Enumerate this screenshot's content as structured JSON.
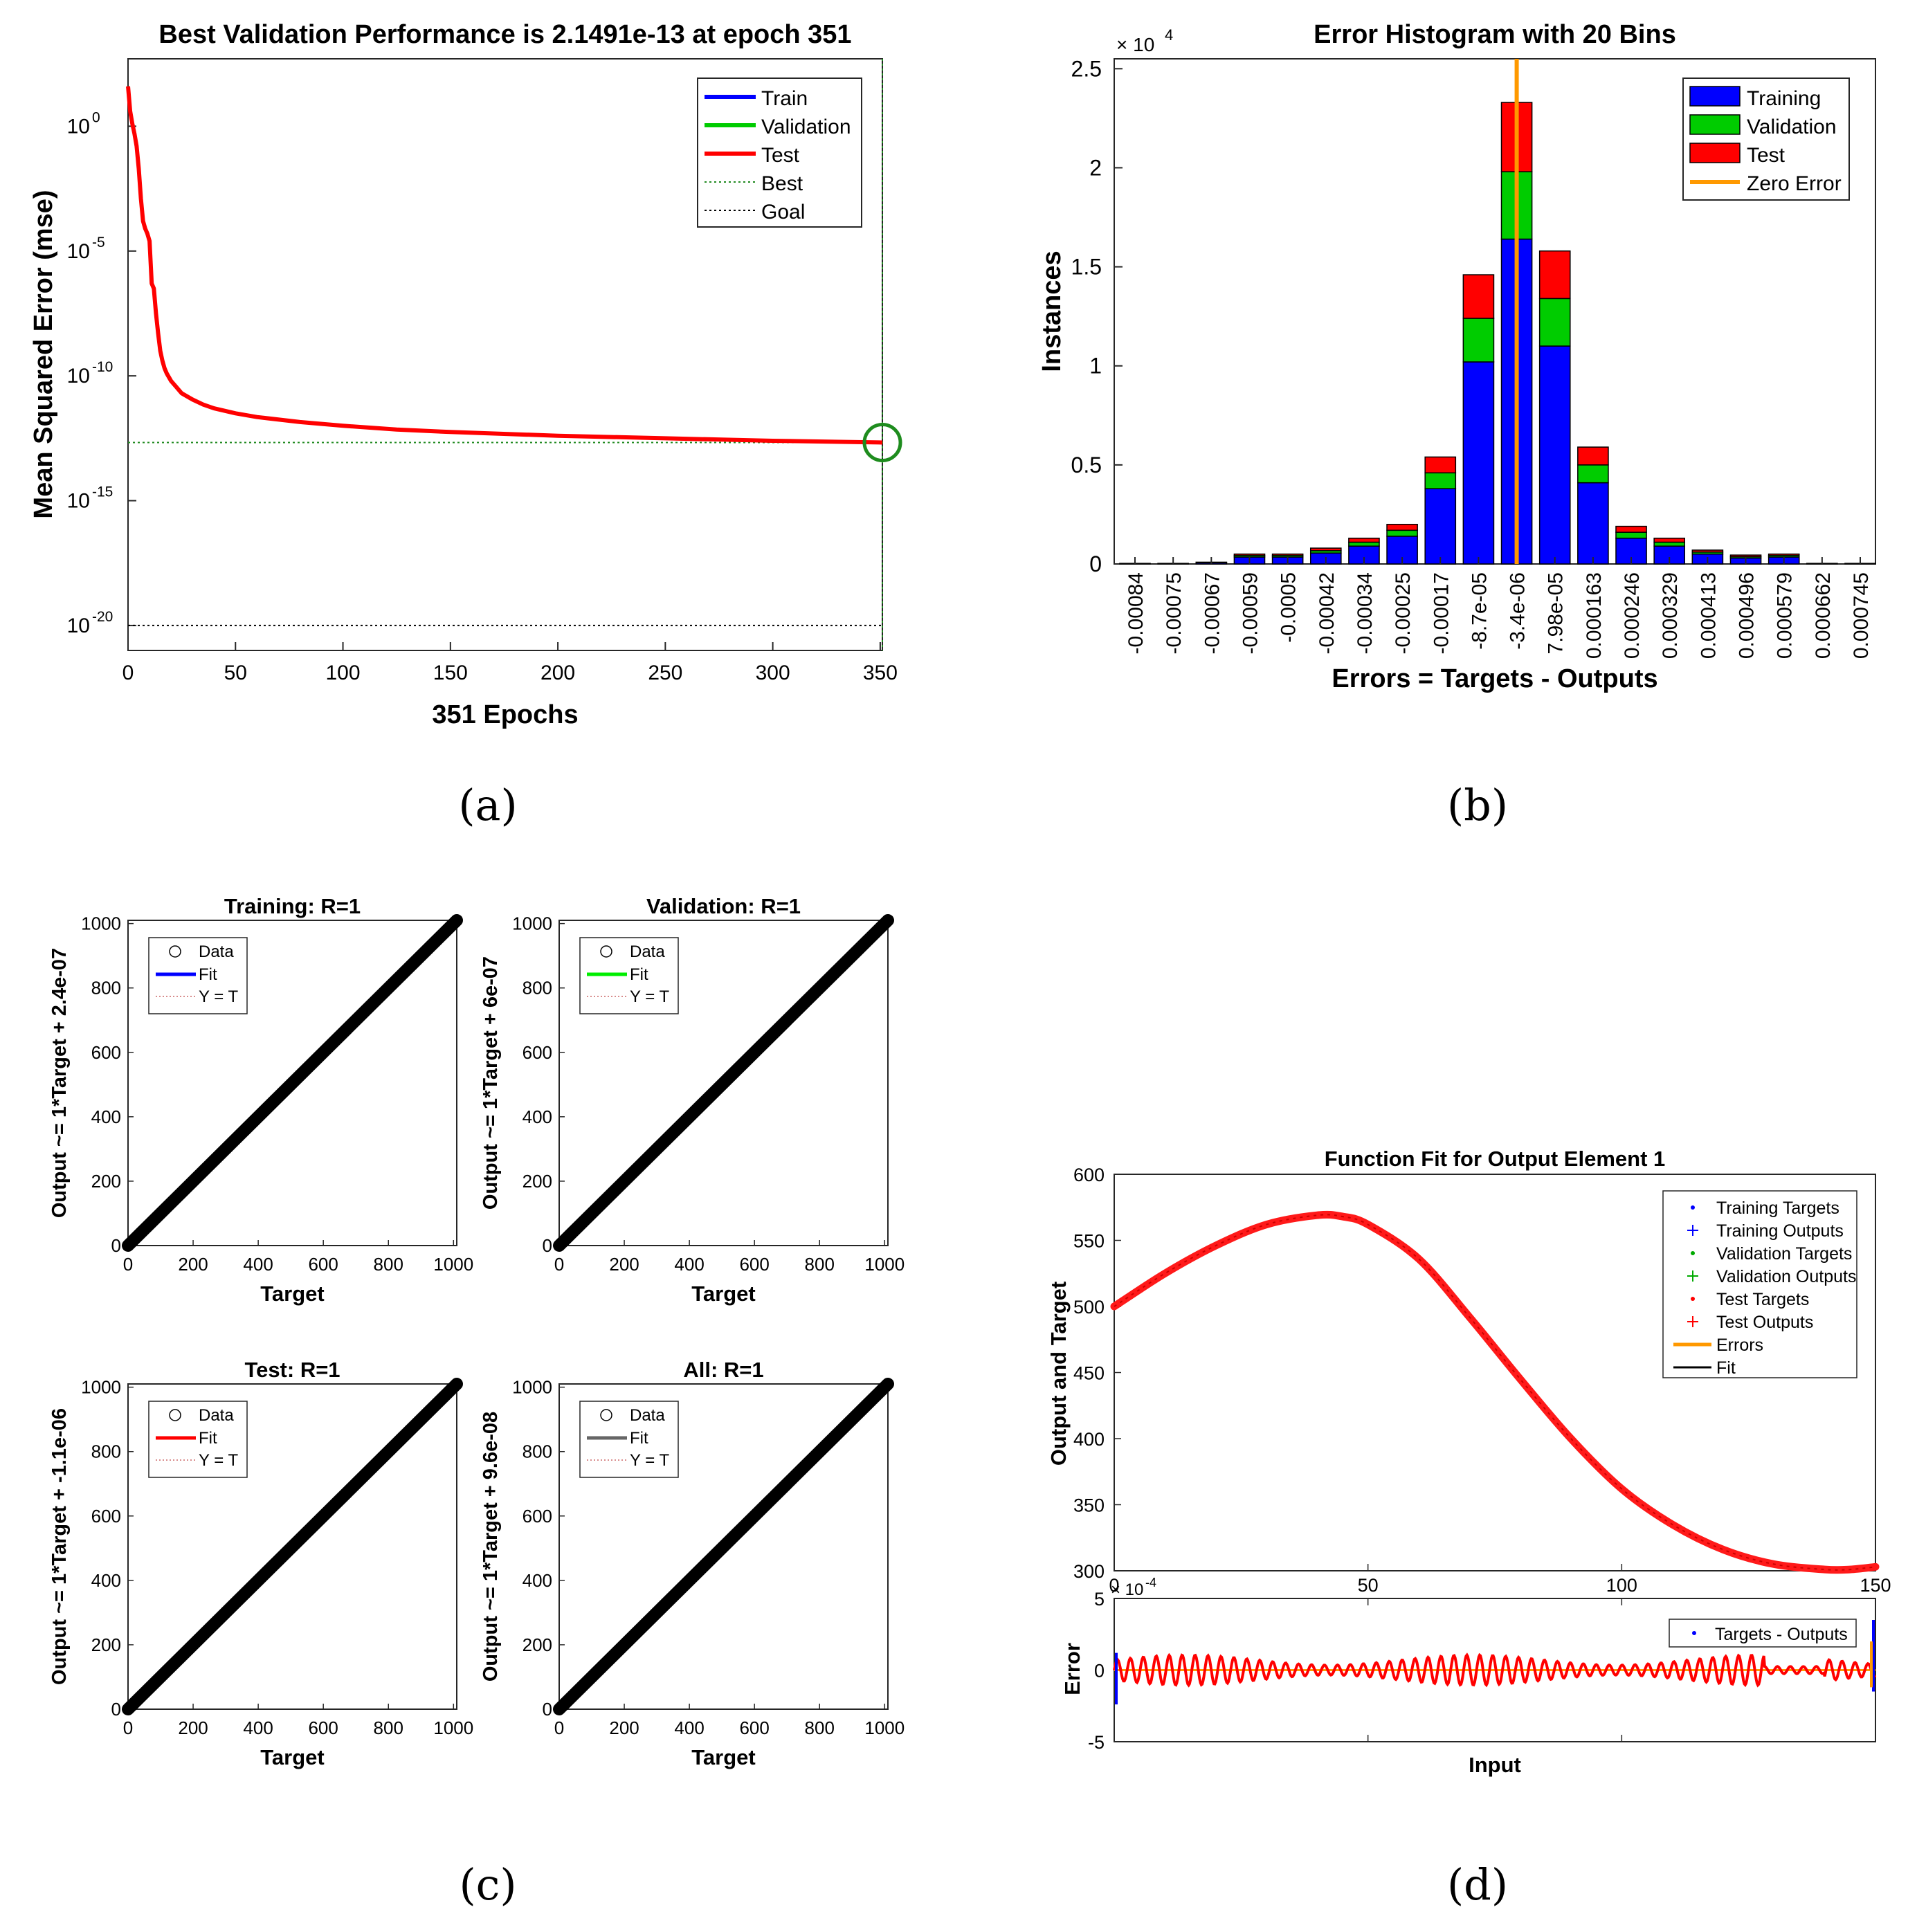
{
  "captions": [
    "(a)",
    "(b)",
    "(c)",
    "(d)"
  ],
  "colors": {
    "train": "#0000ff",
    "validation": "#00cc00",
    "test": "#ff0000",
    "zero_error": "#ff9900",
    "best": "#228b22",
    "gray_fit": "#666666"
  },
  "chart_data": [
    {
      "id": "a",
      "type": "line",
      "title": "Best Validation Performance is 2.1491e-13 at epoch 351",
      "xlabel": "351 Epochs",
      "ylabel": "Mean Squared Error  (mse)",
      "xlim": [
        0,
        351
      ],
      "ylim_log10": [
        -21,
        2.7
      ],
      "xticks": [
        0,
        50,
        100,
        150,
        200,
        250,
        300,
        350
      ],
      "yticks": [
        {
          "exp": 0,
          "base": "10",
          "sup": "0"
        },
        {
          "exp": -5,
          "base": "10",
          "sup": "-5"
        },
        {
          "exp": -10,
          "base": "10",
          "sup": "-10"
        },
        {
          "exp": -15,
          "base": "10",
          "sup": "-15"
        },
        {
          "exp": -20,
          "base": "10",
          "sup": "-20"
        }
      ],
      "best_epoch": 351,
      "best_value_log10": -12.67,
      "goal_log10": -20,
      "test_curve": {
        "epochs": [
          0,
          1,
          2,
          3,
          4,
          5,
          6,
          7,
          8,
          9,
          10,
          11,
          12,
          13,
          14,
          15,
          16,
          17,
          18,
          20,
          22,
          25,
          30,
          35,
          40,
          50,
          60,
          80,
          100,
          125,
          150,
          200,
          250,
          300,
          351
        ],
        "log10_mse": [
          1.6,
          0.6,
          0.1,
          -0.3,
          -0.8,
          -1.7,
          -2.9,
          -3.8,
          -4.1,
          -4.3,
          -4.6,
          -6.3,
          -6.5,
          -7.5,
          -8.3,
          -9.0,
          -9.4,
          -9.7,
          -9.9,
          -10.2,
          -10.4,
          -10.7,
          -10.95,
          -11.15,
          -11.3,
          -11.5,
          -11.65,
          -11.85,
          -12.0,
          -12.15,
          -12.25,
          -12.4,
          -12.5,
          -12.6,
          -12.67
        ]
      },
      "legend": [
        "Train",
        "Validation",
        "Test",
        "Best",
        "Goal"
      ]
    },
    {
      "id": "b",
      "type": "bar",
      "stacked": true,
      "title": "Error Histogram with 20 Bins",
      "xlabel": "Errors = Targets - Outputs",
      "ylabel": "Instances",
      "exponent_label": "× 10",
      "exponent_sup": "4",
      "ylim": [
        0,
        2.55
      ],
      "yticks": [
        0,
        0.5,
        1,
        1.5,
        2,
        2.5
      ],
      "categories": [
        "-0.00084",
        "-0.00075",
        "-0.00067",
        "-0.00059",
        "-0.0005",
        "-0.00042",
        "-0.00034",
        "-0.00025",
        "-0.00017",
        "-8.7e-05",
        "-3.4e-06",
        "7.98e-05",
        "0.000163",
        "0.000246",
        "0.000329",
        "0.000413",
        "0.000496",
        "0.000579",
        "0.000662",
        "0.000745"
      ],
      "series": [
        {
          "name": "Training",
          "values": [
            0.003,
            0.003,
            0.007,
            0.035,
            0.035,
            0.055,
            0.09,
            0.14,
            0.38,
            1.02,
            1.64,
            1.1,
            0.41,
            0.13,
            0.09,
            0.05,
            0.03,
            0.035,
            0.003,
            0.003
          ]
        },
        {
          "name": "Validation",
          "values": [
            0.0,
            0.0,
            0.001,
            0.008,
            0.008,
            0.012,
            0.02,
            0.03,
            0.08,
            0.22,
            0.34,
            0.24,
            0.09,
            0.03,
            0.02,
            0.01,
            0.007,
            0.008,
            0.0,
            0.0
          ]
        },
        {
          "name": "Test",
          "values": [
            0.0,
            0.0,
            0.001,
            0.007,
            0.007,
            0.013,
            0.02,
            0.03,
            0.08,
            0.22,
            0.35,
            0.24,
            0.09,
            0.03,
            0.02,
            0.01,
            0.008,
            0.007,
            0.0,
            0.0
          ]
        }
      ],
      "zero_error_bin": 10,
      "legend": [
        "Training",
        "Validation",
        "Test",
        "Zero Error"
      ]
    },
    {
      "id": "c1",
      "type": "scatter",
      "title": "Training: R=1",
      "xlabel": "Target",
      "ylabel": "Output ~= 1*Target + 2.4e-07",
      "xlim": [
        0,
        1010
      ],
      "ylim": [
        0,
        1010
      ],
      "xticks": [
        0,
        200,
        400,
        600,
        800,
        1000
      ],
      "yticks": [
        0,
        200,
        400,
        600,
        800,
        1000
      ],
      "fit_color": "#0000ff",
      "legend": [
        "Data",
        "Fit",
        "Y = T"
      ]
    },
    {
      "id": "c2",
      "type": "scatter",
      "title": "Validation: R=1",
      "xlabel": "Target",
      "ylabel": "Output ~= 1*Target + 6e-07",
      "xlim": [
        0,
        1010
      ],
      "ylim": [
        0,
        1010
      ],
      "xticks": [
        0,
        200,
        400,
        600,
        800,
        1000
      ],
      "yticks": [
        0,
        200,
        400,
        600,
        800,
        1000
      ],
      "fit_color": "#00ee00",
      "legend": [
        "Data",
        "Fit",
        "Y = T"
      ]
    },
    {
      "id": "c3",
      "type": "scatter",
      "title": "Test: R=1",
      "xlabel": "Target",
      "ylabel": "Output ~= 1*Target + -1.1e-06",
      "xlim": [
        0,
        1010
      ],
      "ylim": [
        0,
        1010
      ],
      "xticks": [
        0,
        200,
        400,
        600,
        800,
        1000
      ],
      "yticks": [
        0,
        200,
        400,
        600,
        800,
        1000
      ],
      "fit_color": "#ff0000",
      "legend": [
        "Data",
        "Fit",
        "Y = T"
      ]
    },
    {
      "id": "c4",
      "type": "scatter",
      "title": "All: R=1",
      "xlabel": "Target",
      "ylabel": "Output ~= 1*Target + 9.6e-08",
      "xlim": [
        0,
        1010
      ],
      "ylim": [
        0,
        1010
      ],
      "xticks": [
        0,
        200,
        400,
        600,
        800,
        1000
      ],
      "yticks": [
        0,
        200,
        400,
        600,
        800,
        1000
      ],
      "fit_color": "#666666",
      "legend": [
        "Data",
        "Fit",
        "Y = T"
      ]
    },
    {
      "id": "d",
      "type": "line",
      "title": "Function Fit for Output Element 1",
      "xlabel": "Input",
      "ylabel": "Output and Target",
      "xlim": [
        0,
        150
      ],
      "ylim": [
        300,
        600
      ],
      "xticks": [
        0,
        50,
        100,
        150
      ],
      "yticks": [
        300,
        350,
        400,
        450,
        500,
        550,
        600
      ],
      "curve": {
        "x": [
          0,
          10,
          20,
          30,
          40,
          45,
          50,
          60,
          70,
          80,
          90,
          100,
          110,
          120,
          130,
          140,
          145,
          150
        ],
        "y": [
          500,
          525,
          546,
          562,
          569,
          568,
          562,
          536,
          492,
          445,
          400,
          362,
          335,
          316,
          305,
          301,
          301,
          303
        ]
      },
      "legend": [
        "Training Targets",
        "Training Outputs",
        "Validation Targets",
        "Validation Outputs",
        "Test Targets",
        "Test Outputs",
        "Errors",
        "Fit"
      ],
      "error_panel": {
        "ylabel": "Error",
        "exponent_label": "× 10",
        "exponent_sup": "-4",
        "ylim": [
          -5,
          5
        ],
        "yticks": [
          5,
          0,
          -5
        ],
        "legend": [
          "Targets - Outputs"
        ]
      }
    }
  ]
}
